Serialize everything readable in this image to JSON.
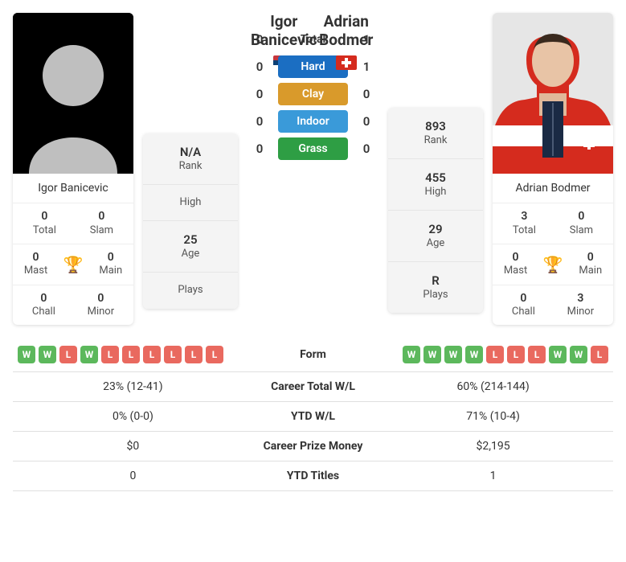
{
  "player1": {
    "name_first": "Igor",
    "name_last": "Banicevic",
    "full_name": "Igor Banicevic",
    "flag_colors": [
      "#c6363c",
      "#0c4076",
      "#ffffff"
    ],
    "rank": "N/A",
    "high": "",
    "age": "25",
    "plays": "",
    "titles": {
      "total": "0",
      "slam": "0",
      "mast": "0",
      "main": "0",
      "chall": "0",
      "minor": "0"
    }
  },
  "player2": {
    "name_first": "Adrian",
    "name_last": "Bodmer",
    "full_name": "Adrian Bodmer",
    "flag_colors": [
      "#d52b1e",
      "#ffffff"
    ],
    "rank": "893",
    "high": "455",
    "age": "29",
    "plays": "R",
    "titles": {
      "total": "3",
      "slam": "0",
      "mast": "0",
      "main": "0",
      "chall": "0",
      "minor": "3"
    }
  },
  "labels": {
    "rank": "Rank",
    "high": "High",
    "age": "Age",
    "plays": "Plays",
    "total": "Total",
    "slam": "Slam",
    "mast": "Mast",
    "main": "Main",
    "chall": "Chall",
    "minor": "Minor"
  },
  "h2h": {
    "rows": [
      {
        "label": "Total",
        "p1": "0",
        "p2": "1",
        "pill": false
      },
      {
        "label": "Hard",
        "p1": "0",
        "p2": "1",
        "pill": true,
        "color": "#1b6ec2"
      },
      {
        "label": "Clay",
        "p1": "0",
        "p2": "0",
        "pill": true,
        "color": "#d99a2b"
      },
      {
        "label": "Indoor",
        "p1": "0",
        "p2": "0",
        "pill": true,
        "color": "#3a9ad9"
      },
      {
        "label": "Grass",
        "p1": "0",
        "p2": "0",
        "pill": true,
        "color": "#2e9e44"
      }
    ]
  },
  "compare": {
    "form_label": "Form",
    "p1_form": [
      "W",
      "W",
      "L",
      "W",
      "L",
      "L",
      "L",
      "L",
      "L",
      "L"
    ],
    "p2_form": [
      "W",
      "W",
      "W",
      "W",
      "L",
      "L",
      "L",
      "W",
      "W",
      "L"
    ],
    "rows": [
      {
        "label": "Career Total W/L",
        "p1": "23% (12-41)",
        "p2": "60% (214-144)"
      },
      {
        "label": "YTD W/L",
        "p1": "0% (0-0)",
        "p2": "71% (10-4)"
      },
      {
        "label": "Career Prize Money",
        "p1": "$0",
        "p2": "$2,195"
      },
      {
        "label": "YTD Titles",
        "p1": "0",
        "p2": "1"
      }
    ]
  },
  "colors": {
    "win_badge": "#5cb85c",
    "loss_badge": "#e9695f",
    "trophy": "#5a94d6"
  }
}
